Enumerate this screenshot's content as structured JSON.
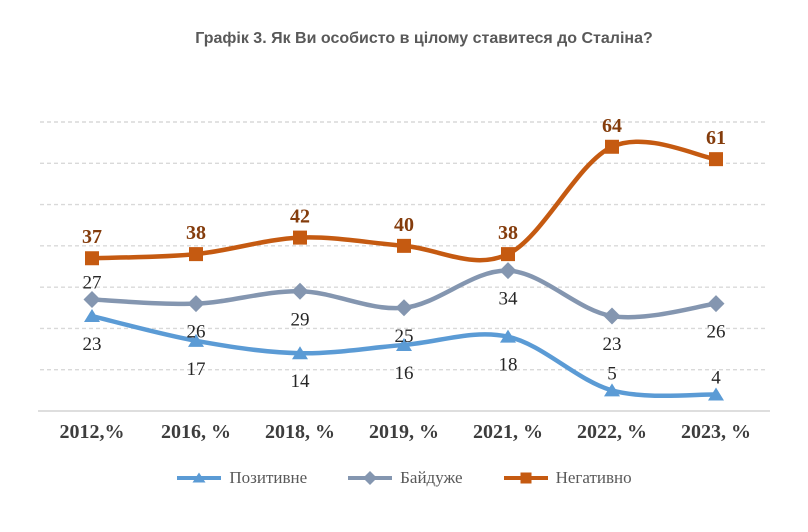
{
  "title": "Графік 3. Як Ви особисто в цілому ставитеся до Сталіна?",
  "chart_data": {
    "type": "line",
    "smooth": true,
    "title": "Графік 3. Як Ви особисто в цілому ставитеся до Сталіна?",
    "categories": [
      "2012,%",
      "2016, %",
      "2018, %",
      "2019, %",
      "2021, %",
      "2022, %",
      "2023, %"
    ],
    "series": [
      {
        "name": "Позитивне",
        "key": "positive",
        "color": "#5B9BD5",
        "marker": "triangle",
        "values": [
          23,
          17,
          14,
          16,
          18,
          5,
          4
        ],
        "label_color": "#262626",
        "label_bold": false,
        "label_positions": [
          "below",
          "below",
          "below",
          "below",
          "below",
          "above",
          "above"
        ]
      },
      {
        "name": "Байдуже",
        "key": "indifferent",
        "color": "#8496B0",
        "marker": "diamond",
        "values": [
          27,
          26,
          29,
          25,
          34,
          23,
          26
        ],
        "label_color": "#262626",
        "label_bold": false,
        "label_positions": [
          "above",
          "below",
          "below",
          "below",
          "below",
          "below",
          "below"
        ]
      },
      {
        "name": "Негативно",
        "key": "negative",
        "color": "#C55A11",
        "marker": "square",
        "values": [
          37,
          38,
          42,
          40,
          38,
          64,
          61
        ],
        "label_color": "#843C0C",
        "label_bold": true,
        "label_positions": [
          "above",
          "above",
          "above",
          "above",
          "above",
          "above",
          "above"
        ]
      }
    ],
    "ylim": [
      0,
      70
    ],
    "grid": {
      "step": 10,
      "on": true,
      "color": "#D9D9D9",
      "style": "dashed"
    },
    "axis_line_color": "#C9C9C9",
    "y_axis_labels": "none",
    "legend_position": "bottom"
  }
}
